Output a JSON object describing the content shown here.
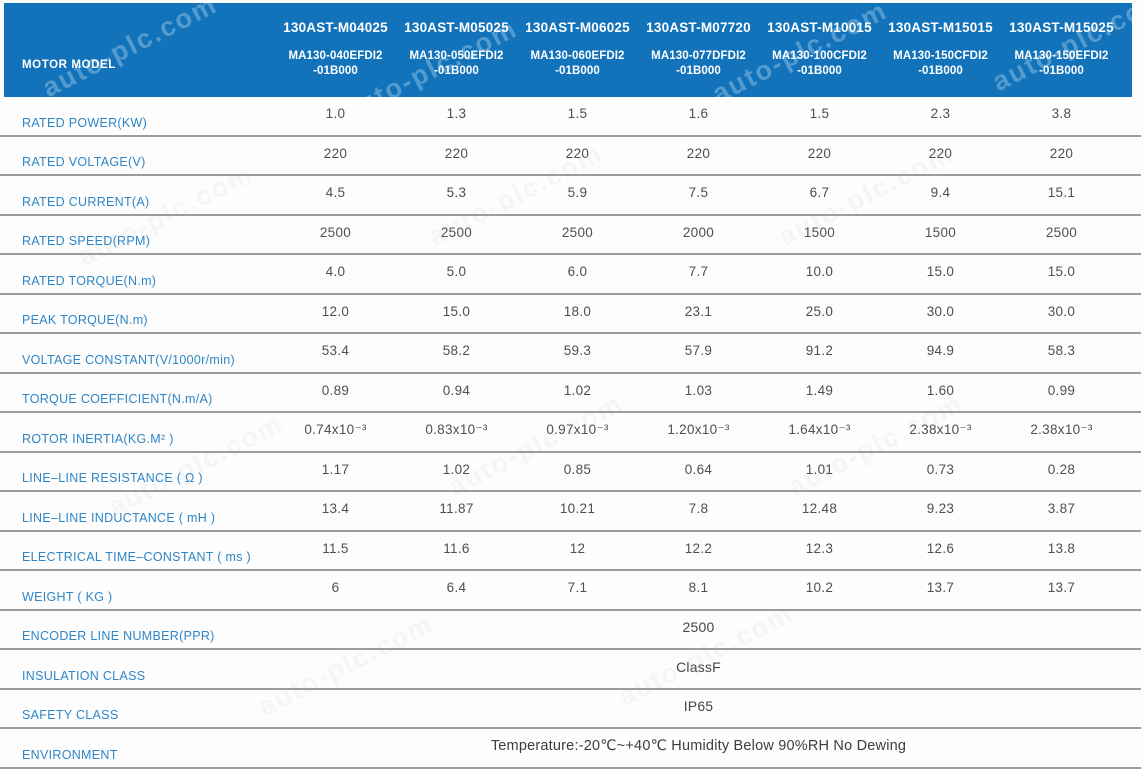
{
  "watermark": {
    "text": "auto-plc.com"
  },
  "colors": {
    "header_bg": "#1273ba",
    "label_blue": "#2e86c6",
    "value_gray": "#4f4f4f",
    "row_line": "#9c9c9c",
    "header_text": "#ffffff"
  },
  "header": {
    "row_label": "MOTOR MODEL",
    "columns": [
      {
        "model": "130AST-M04025",
        "code_line1": "MA130-040EFDI2",
        "code_line2": "-01B000"
      },
      {
        "model": "130AST-M05025",
        "code_line1": "MA130-050EFDI2",
        "code_line2": "-01B000"
      },
      {
        "model": "130AST-M06025",
        "code_line1": "MA130-060EFDI2",
        "code_line2": "-01B000"
      },
      {
        "model": "130AST-M07720",
        "code_line1": "MA130-077DFDI2",
        "code_line2": "-01B000"
      },
      {
        "model": "130AST-M10015",
        "code_line1": "MA130-100CFDI2",
        "code_line2": "-01B000"
      },
      {
        "model": "130AST-M15015",
        "code_line1": "MA130-150CFDI2",
        "code_line2": "-01B000"
      },
      {
        "model": "130AST-M15025",
        "code_line1": "MA130-150EFDI2",
        "code_line2": "-01B000"
      }
    ]
  },
  "rows": [
    {
      "label": "RATED POWER(KW)",
      "values": [
        "1.0",
        "1.3",
        "1.5",
        "1.6",
        "1.5",
        "2.3",
        "3.8"
      ]
    },
    {
      "label": "RATED VOLTAGE(V)",
      "values": [
        "220",
        "220",
        "220",
        "220",
        "220",
        "220",
        "220"
      ]
    },
    {
      "label": "RATED CURRENT(A)",
      "values": [
        "4.5",
        "5.3",
        "5.9",
        "7.5",
        "6.7",
        "9.4",
        "15.1"
      ]
    },
    {
      "label": "RATED SPEED(RPM)",
      "values": [
        "2500",
        "2500",
        "2500",
        "2000",
        "1500",
        "1500",
        "2500"
      ]
    },
    {
      "label": "RATED TORQUE(N.m)",
      "values": [
        "4.0",
        "5.0",
        "6.0",
        "7.7",
        "10.0",
        "15.0",
        "15.0"
      ]
    },
    {
      "label": "PEAK TORQUE(N.m)",
      "values": [
        "12.0",
        "15.0",
        "18.0",
        "23.1",
        "25.0",
        "30.0",
        "30.0"
      ]
    },
    {
      "label": "VOLTAGE CONSTANT(V/1000r/min)",
      "values": [
        "53.4",
        "58.2",
        "59.3",
        "57.9",
        "91.2",
        "94.9",
        "58.3"
      ]
    },
    {
      "label": "TORQUE COEFFICIENT(N.m/A)",
      "values": [
        "0.89",
        "0.94",
        "1.02",
        "1.03",
        "1.49",
        "1.60",
        "0.99"
      ]
    },
    {
      "label": "ROTOR INERTIA(KG.M² )",
      "values": [
        "0.74x10⁻³",
        "0.83x10⁻³",
        "0.97x10⁻³",
        "1.20x10⁻³",
        "1.64x10⁻³",
        "2.38x10⁻³",
        "2.38x10⁻³"
      ]
    },
    {
      "label": "LINE–LINE RESISTANCE ( Ω )",
      "values": [
        "1.17",
        "1.02",
        "0.85",
        "0.64",
        "1.01",
        "0.73",
        "0.28"
      ]
    },
    {
      "label": "LINE–LINE INDUCTANCE ( mH )",
      "values": [
        "13.4",
        "11.87",
        "10.21",
        "7.8",
        "12.48",
        "9.23",
        "3.87"
      ]
    },
    {
      "label": "ELECTRICAL TIME–CONSTANT ( ms )",
      "values": [
        "11.5",
        "11.6",
        "12",
        "12.2",
        "12.3",
        "12.6",
        "13.8"
      ]
    },
    {
      "label": "WEIGHT ( KG )",
      "values": [
        "6",
        "6.4",
        "7.1",
        "8.1",
        "10.2",
        "13.7",
        "13.7"
      ]
    },
    {
      "label": "ENCODER LINE NUMBER(PPR)",
      "span": "2500"
    },
    {
      "label": "INSULATION CLASS",
      "span": "ClassF"
    },
    {
      "label": "SAFETY CLASS",
      "span": "IP65"
    },
    {
      "label": "ENVIRONMENT",
      "span": "Temperature:-20℃~+40℃  Humidity Below 90%RH No Dewing"
    }
  ]
}
